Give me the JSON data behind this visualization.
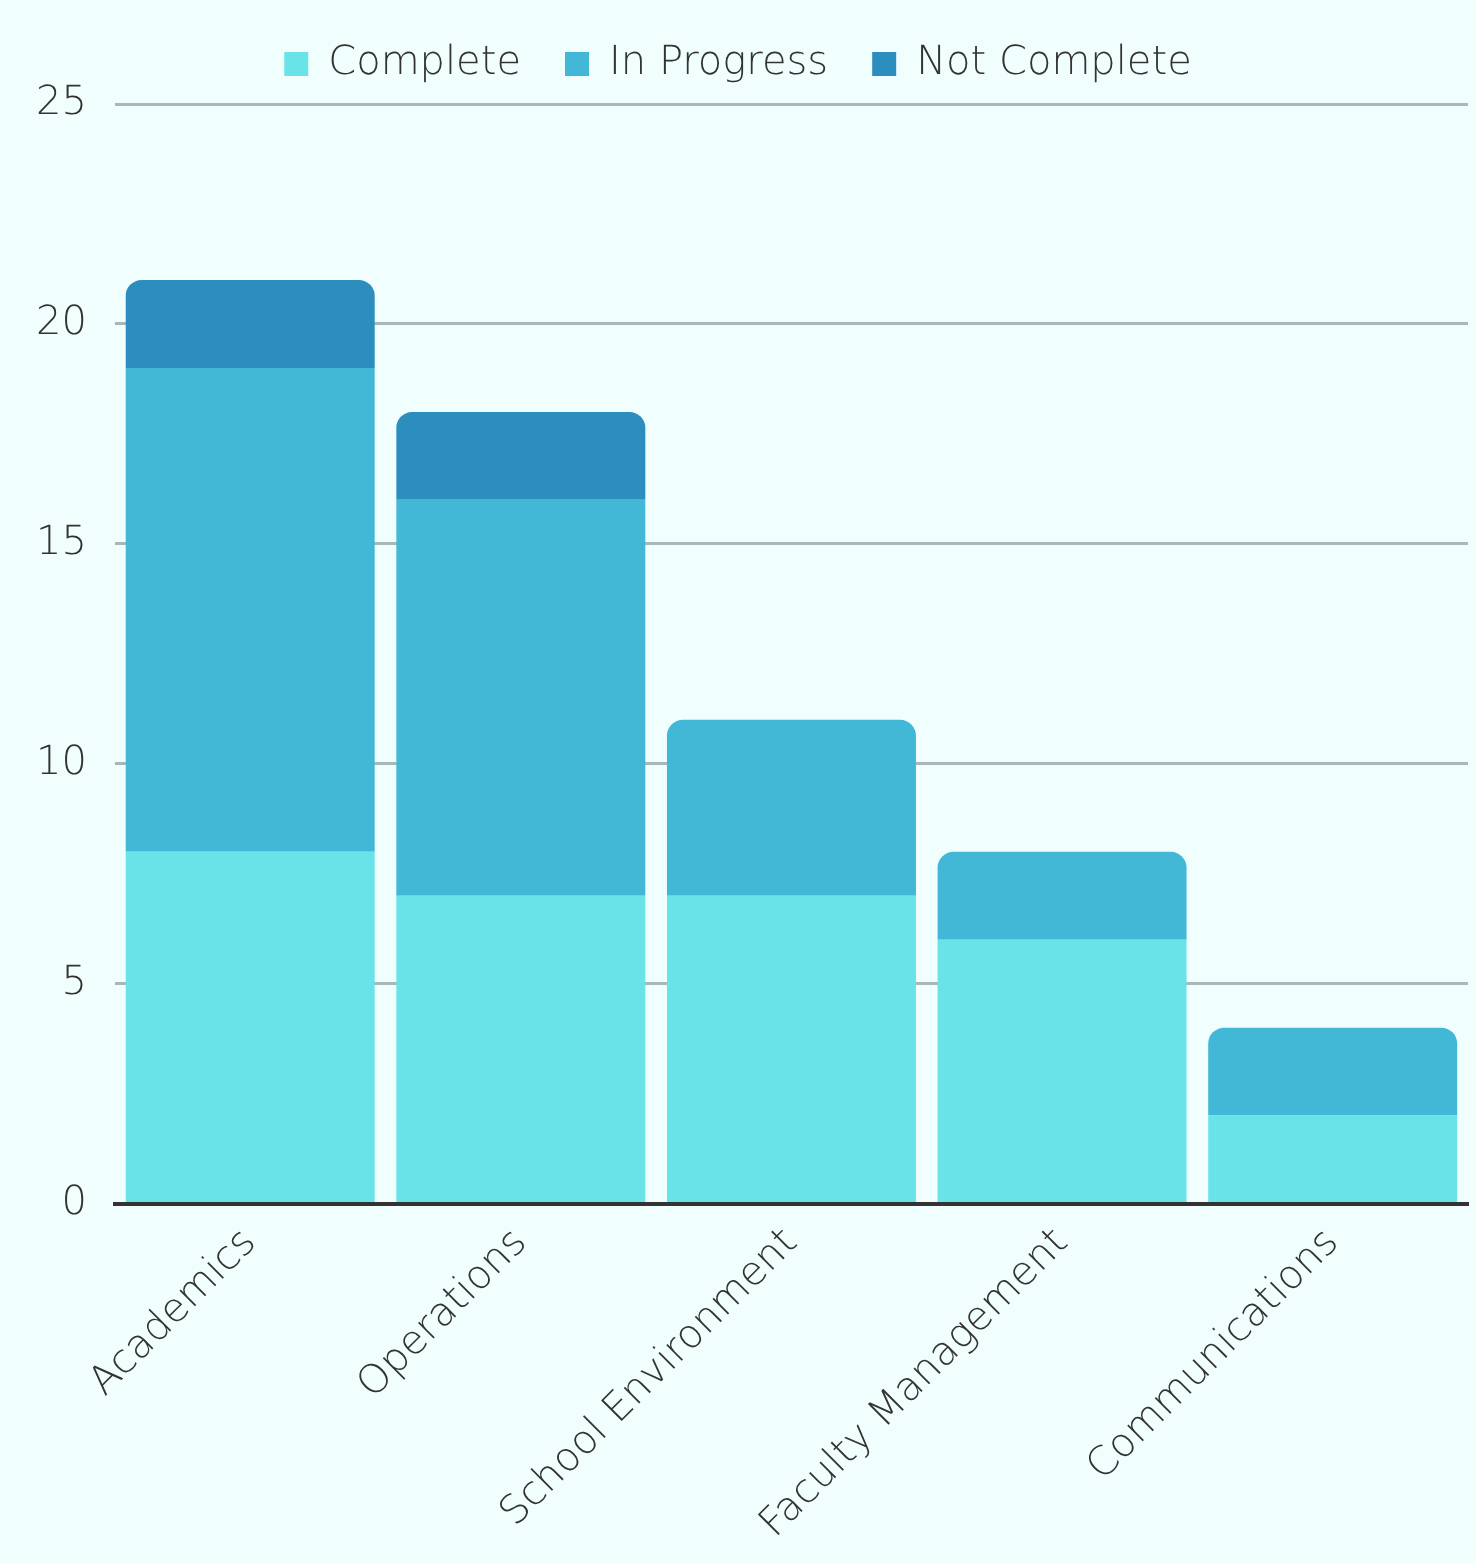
{
  "chart_data": {
    "type": "bar",
    "stacked": true,
    "categories": [
      "Academics",
      "Operations",
      "School Environment",
      "Faculty Management",
      "Communications"
    ],
    "series": [
      {
        "name": "Complete",
        "color": "#6ae3e8",
        "values": [
          8,
          7,
          7,
          6,
          2
        ]
      },
      {
        "name": "In Progress",
        "color": "#42b8d6",
        "values": [
          11,
          9,
          4,
          2,
          2
        ]
      },
      {
        "name": "Not Complete",
        "color": "#2c8dbf",
        "values": [
          2,
          2,
          0,
          0,
          0
        ]
      }
    ],
    "ylim": [
      0,
      25
    ],
    "yticks": [
      0,
      5,
      10,
      15,
      20,
      25
    ],
    "grid": "y",
    "legend": "top"
  }
}
